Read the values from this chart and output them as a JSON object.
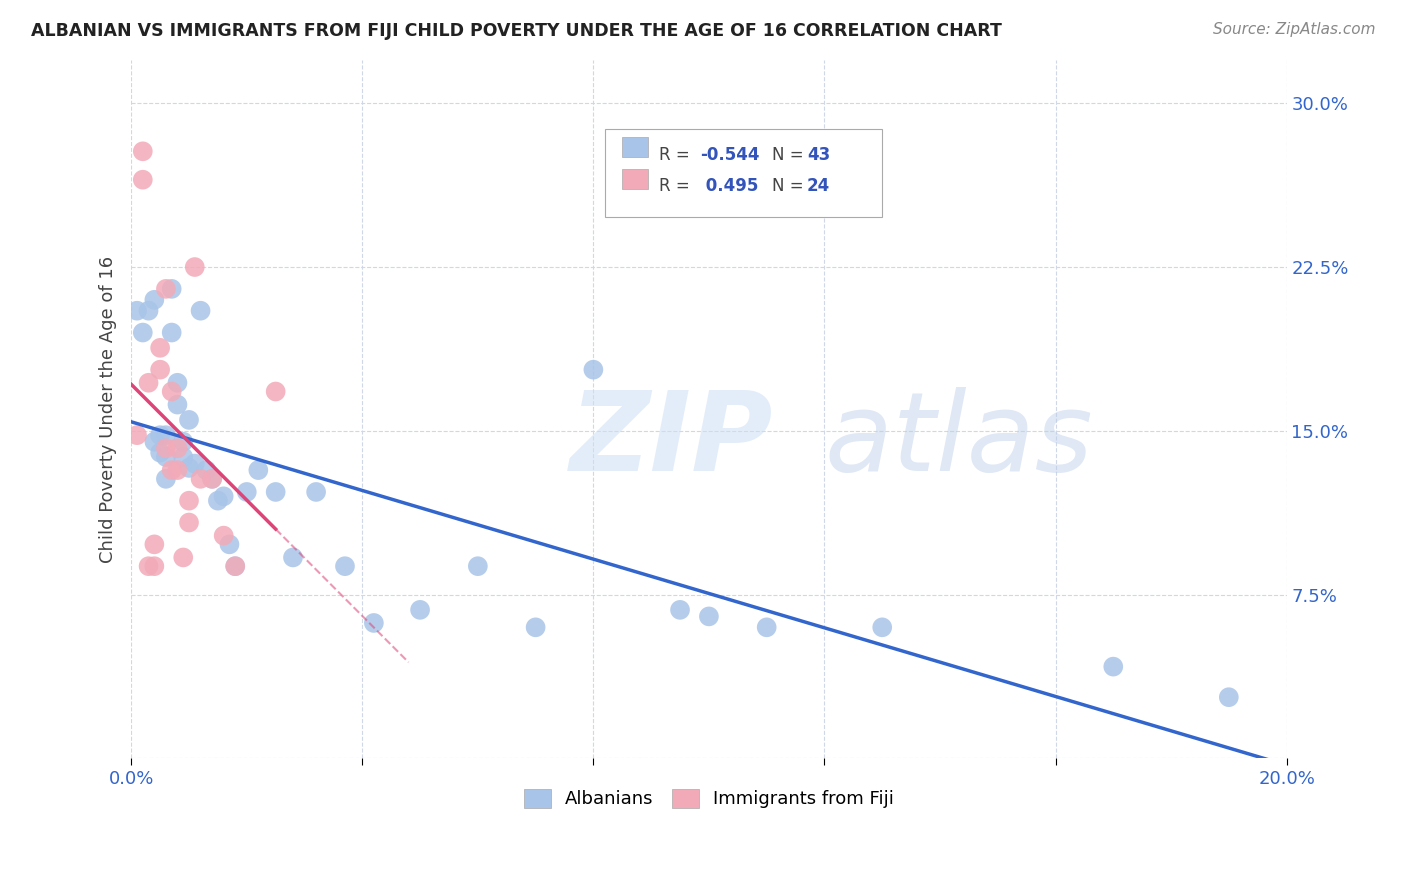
{
  "title": "ALBANIAN VS IMMIGRANTS FROM FIJI CHILD POVERTY UNDER THE AGE OF 16 CORRELATION CHART",
  "source": "Source: ZipAtlas.com",
  "ylabel": "Child Poverty Under the Age of 16",
  "xlim": [
    0.0,
    0.2
  ],
  "ylim": [
    0.0,
    0.32
  ],
  "yticks": [
    0.0,
    0.075,
    0.15,
    0.225,
    0.3
  ],
  "ytick_labels": [
    "",
    "7.5%",
    "15.0%",
    "22.5%",
    "30.0%"
  ],
  "xtick_labels_show": [
    "0.0%",
    "20.0%"
  ],
  "xtick_positions_show": [
    0.0,
    0.2
  ],
  "xtick_grid_positions": [
    0.0,
    0.04,
    0.08,
    0.12,
    0.16,
    0.2
  ],
  "watermark_zip": "ZIP",
  "watermark_atlas": "atlas",
  "blue_color": "#a8c4e8",
  "pink_color": "#f2aab8",
  "blue_line_color": "#3366cc",
  "pink_line_color": "#dd4477",
  "grid_color": "#d0d8e8",
  "title_color": "#222222",
  "axis_label_color": "#3366cc",
  "albanians_x": [
    0.001,
    0.002,
    0.003,
    0.004,
    0.004,
    0.005,
    0.005,
    0.006,
    0.006,
    0.006,
    0.007,
    0.007,
    0.008,
    0.008,
    0.009,
    0.009,
    0.01,
    0.01,
    0.011,
    0.012,
    0.013,
    0.014,
    0.015,
    0.016,
    0.017,
    0.018,
    0.02,
    0.022,
    0.025,
    0.028,
    0.032,
    0.037,
    0.042,
    0.05,
    0.06,
    0.07,
    0.08,
    0.095,
    0.1,
    0.11,
    0.13,
    0.17,
    0.19
  ],
  "albanians_y": [
    0.205,
    0.195,
    0.205,
    0.21,
    0.145,
    0.148,
    0.14,
    0.148,
    0.138,
    0.128,
    0.215,
    0.195,
    0.172,
    0.162,
    0.145,
    0.138,
    0.155,
    0.133,
    0.135,
    0.205,
    0.132,
    0.128,
    0.118,
    0.12,
    0.098,
    0.088,
    0.122,
    0.132,
    0.122,
    0.092,
    0.122,
    0.088,
    0.062,
    0.068,
    0.088,
    0.06,
    0.178,
    0.068,
    0.065,
    0.06,
    0.06,
    0.042,
    0.028
  ],
  "fiji_x": [
    0.001,
    0.002,
    0.002,
    0.003,
    0.003,
    0.004,
    0.004,
    0.005,
    0.005,
    0.006,
    0.006,
    0.007,
    0.007,
    0.008,
    0.008,
    0.009,
    0.01,
    0.01,
    0.011,
    0.012,
    0.014,
    0.016,
    0.018,
    0.025
  ],
  "fiji_y": [
    0.148,
    0.278,
    0.265,
    0.172,
    0.088,
    0.088,
    0.098,
    0.188,
    0.178,
    0.215,
    0.142,
    0.168,
    0.132,
    0.142,
    0.132,
    0.092,
    0.118,
    0.108,
    0.225,
    0.128,
    0.128,
    0.102,
    0.088,
    0.168
  ],
  "figsize": [
    14.06,
    8.92
  ],
  "dpi": 100
}
